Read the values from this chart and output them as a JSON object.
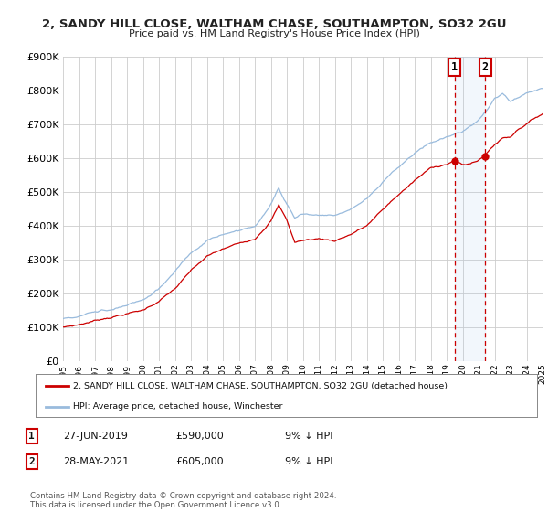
{
  "title": "2, SANDY HILL CLOSE, WALTHAM CHASE, SOUTHAMPTON, SO32 2GU",
  "subtitle": "Price paid vs. HM Land Registry's House Price Index (HPI)",
  "legend_label_red": "2, SANDY HILL CLOSE, WALTHAM CHASE, SOUTHAMPTON, SO32 2GU (detached house)",
  "legend_label_blue": "HPI: Average price, detached house, Winchester",
  "annotation1_label": "1",
  "annotation1_date": "27-JUN-2019",
  "annotation1_price": "£590,000",
  "annotation1_hpi": "9% ↓ HPI",
  "annotation2_label": "2",
  "annotation2_date": "28-MAY-2021",
  "annotation2_price": "£605,000",
  "annotation2_hpi": "9% ↓ HPI",
  "footer": "Contains HM Land Registry data © Crown copyright and database right 2024.\nThis data is licensed under the Open Government Licence v3.0.",
  "sale1_year": 2019.49,
  "sale1_value": 590000,
  "sale2_year": 2021.41,
  "sale2_value": 605000,
  "background_color": "#ffffff",
  "plot_bg_color": "#ffffff",
  "grid_color": "#cccccc",
  "red_color": "#cc0000",
  "blue_color": "#99bbdd",
  "dashed_color": "#cc0000",
  "span_color": "#aaccee",
  "ylim": [
    0,
    900000
  ],
  "xlim_start": 1995,
  "xlim_end": 2025
}
